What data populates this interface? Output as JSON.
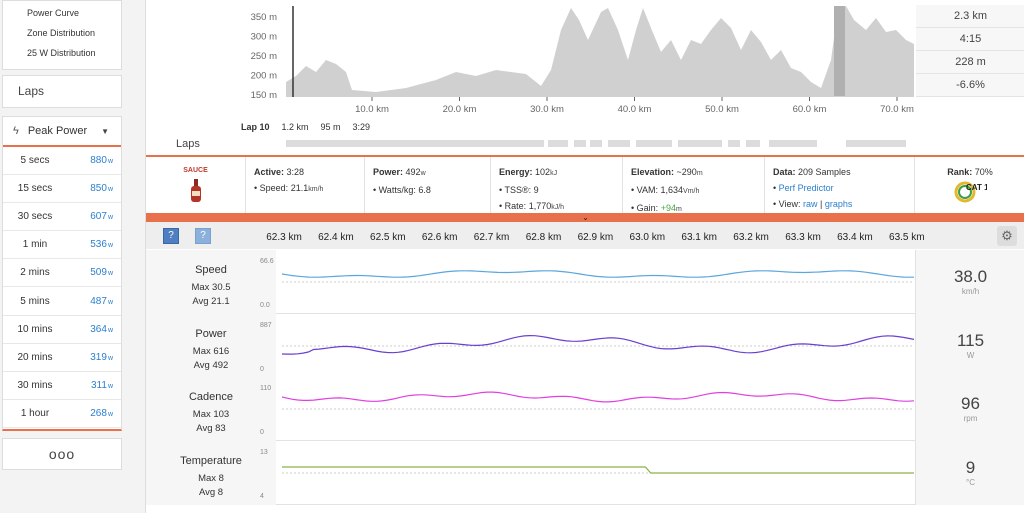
{
  "sidebar": {
    "menu": [
      "Power Curve",
      "Zone Distribution",
      "25 W Distribution"
    ],
    "laps_label": "Laps",
    "peak_title": "Peak Power",
    "peak_unit": "w",
    "peaks": [
      {
        "label": "5 secs",
        "value": "880"
      },
      {
        "label": "15 secs",
        "value": "850"
      },
      {
        "label": "30 secs",
        "value": "607"
      },
      {
        "label": "1 min",
        "value": "536"
      },
      {
        "label": "2 mins",
        "value": "509"
      },
      {
        "label": "5 mins",
        "value": "487"
      },
      {
        "label": "10 mins",
        "value": "364"
      },
      {
        "label": "20 mins",
        "value": "319"
      },
      {
        "label": "30 mins",
        "value": "311"
      },
      {
        "label": "1 hour",
        "value": "268"
      }
    ],
    "more_label": "ooo"
  },
  "elevation": {
    "y_ticks": [
      "350 m",
      "300 m",
      "250 m",
      "200 m",
      "150 m"
    ],
    "x_ticks": [
      "10.0 km",
      "20.0 km",
      "30.0 km",
      "40.0 km",
      "50.0 km",
      "60.0 km",
      "70.0 km"
    ],
    "colors": {
      "fill": "#d0d0d0",
      "selection": "#b0b0b0",
      "laps": "#dcdcdc"
    }
  },
  "summary": [
    "2.3 km",
    "4:15",
    "228 m",
    "-6.6%"
  ],
  "lap_info": {
    "lap": "Lap 10",
    "distance": "1.2 km",
    "elev": "95 m",
    "time": "3:29"
  },
  "laps_label": "Laps",
  "stats": {
    "sauce": "SAUCE",
    "active": {
      "label": "Active:",
      "value": "3:28",
      "speed_label": "• Speed:",
      "speed": "21.1",
      "speed_unit": "km/h"
    },
    "power": {
      "label": "Power:",
      "value": "492",
      "unit": "w",
      "wkg_label": "• Watts/kg:",
      "wkg": "6.8"
    },
    "energy": {
      "label": "Energy:",
      "value": "102",
      "unit": "kJ",
      "tss_label": "• TSS®:",
      "tss": "9",
      "rate_label": "• Rate:",
      "rate": "1,770",
      "rate_unit": "kJ/h"
    },
    "elevation": {
      "label": "Elevation:",
      "value": "~290",
      "unit": "m",
      "vam_label": "• VAM:",
      "vam": "1,634",
      "vam_unit": "Vm/h",
      "gain_label": "• Gain:",
      "gain": "+94",
      "gain_unit": "m"
    },
    "data": {
      "label": "Data:",
      "value": "209 Samples",
      "perf": "Perf Predictor",
      "view_label": "• View:",
      "raw": "raw",
      "sep": "|",
      "graphs": "graphs"
    },
    "rank": {
      "label": "Rank:",
      "value": "70%",
      "badge": "CAT 1"
    }
  },
  "detail": {
    "km_ticks": [
      "62.3 km",
      "62.4 km",
      "62.5 km",
      "62.6 km",
      "62.7 km",
      "62.8 km",
      "62.9 km",
      "63.0 km",
      "63.1 km",
      "63.2 km",
      "63.3 km",
      "63.4 km",
      "63.5 km"
    ]
  },
  "streams": [
    {
      "name": "Speed",
      "max": "Max 30.5",
      "avg": "Avg 21.1",
      "ymax": "66.6",
      "ymin": "0.0",
      "current": "38.0",
      "unit": "km/h",
      "color": "#5aa6dd"
    },
    {
      "name": "Power",
      "max": "Max 616",
      "avg": "Avg 492",
      "ymax": "887",
      "ymin": "0",
      "current": "115",
      "unit": "W",
      "color": "#6a3fd0"
    },
    {
      "name": "Cadence",
      "max": "Max 103",
      "avg": "Avg 83",
      "ymax": "110",
      "ymin": "0",
      "current": "96",
      "unit": "rpm",
      "color": "#e040e0"
    },
    {
      "name": "Temperature",
      "max": "Max 8",
      "avg": "Avg 8",
      "ymax": "13",
      "ymin": "4",
      "current": "9",
      "unit": "°C",
      "color": "#8db04a"
    }
  ]
}
